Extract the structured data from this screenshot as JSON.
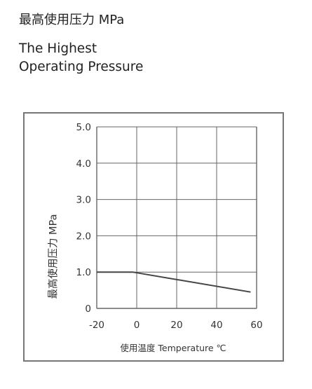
{
  "header": {
    "title_cn": "最高使用压力 MPa",
    "title_en_line1": "The Highest",
    "title_en_line2": "Operating Pressure"
  },
  "chart_data": {
    "type": "line",
    "title": "最高使用压力 MPa",
    "xlabel": "使用温度 Temperature ℃",
    "ylabel": "最高使用压力 MPa",
    "xlim": [
      -20,
      60
    ],
    "ylim": [
      0,
      5
    ],
    "x_ticks": [
      -20,
      0,
      20,
      40,
      60
    ],
    "x_tick_labels": [
      "-20",
      "0",
      "20",
      "40",
      "60"
    ],
    "y_ticks": [
      0,
      1,
      2,
      3,
      4,
      5
    ],
    "y_tick_labels": [
      "0",
      "1.0",
      "2.0",
      "3.0",
      "4.0",
      "5.0"
    ],
    "grid": true,
    "series": [
      {
        "x": [
          -20,
          -2,
          57
        ],
        "y": [
          1.0,
          1.0,
          0.45
        ],
        "color": "#444444"
      }
    ]
  }
}
